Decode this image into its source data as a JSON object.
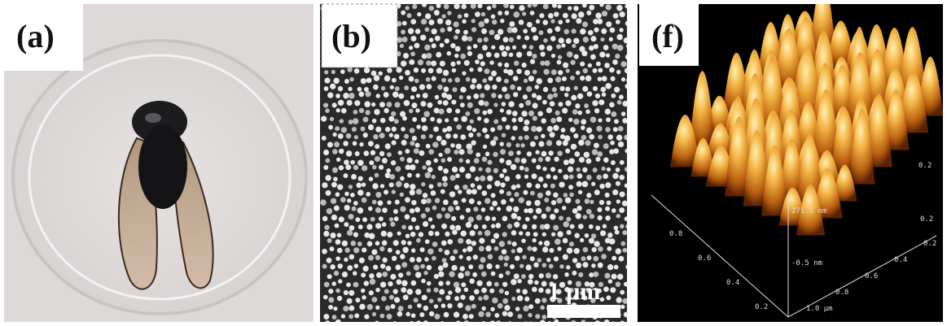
{
  "panels": [
    {
      "label": "(a)"
    },
    {
      "label": "(b)",
      "scale_bar": "1 μm"
    },
    {
      "label": "(f)",
      "z_top": "271.3 nm",
      "z_bottom": "-0.5 nm",
      "left_axis": [
        "0.8",
        "0.6",
        "0.4",
        "0.2"
      ],
      "right_axis": [
        "1.0 μm",
        "0.8",
        "0.6",
        "0.4",
        "0.2"
      ],
      "back_axis": [
        "0.2",
        "0.2"
      ]
    }
  ]
}
